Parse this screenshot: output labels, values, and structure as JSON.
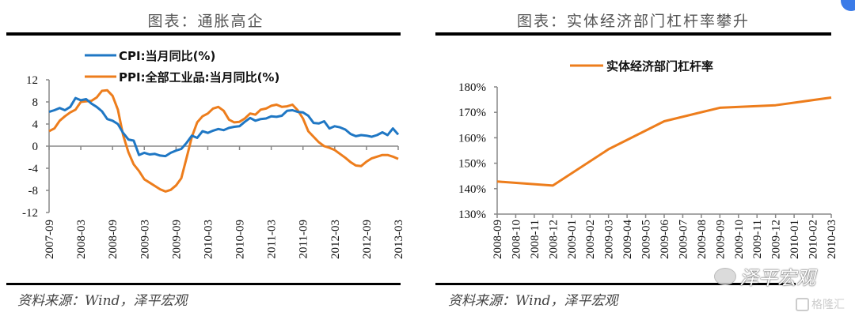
{
  "left_panel": {
    "title": "图表：通胀高企",
    "source": "资料来源：Wind，泽平宏观"
  },
  "right_panel": {
    "title": "图表：实体经济部门杠杆率攀升",
    "source": "资料来源：Wind，泽平宏观"
  },
  "watermark": {
    "text": "泽平宏观",
    "brand": "格隆汇"
  },
  "colors": {
    "cpi": "#1f77c4",
    "ppi": "#ed7d1c",
    "leverage": "#ed7d1c",
    "axis": "#888888"
  },
  "chart_data": [
    {
      "type": "line",
      "title": "图表：通胀高企",
      "xlabel": "",
      "ylabel": "",
      "ylim": [
        -12,
        12
      ],
      "yticks": [
        12,
        8,
        4,
        0,
        -4,
        -8,
        -12
      ],
      "xticks": [
        "2007-09",
        "2008-03",
        "2008-09",
        "2009-03",
        "2009-09",
        "2010-03",
        "2010-09",
        "2011-03",
        "2011-09",
        "2012-03",
        "2012-09",
        "2013-03"
      ],
      "legend_placement": "top-left",
      "series": [
        {
          "name": "CPI:当月同比(%)",
          "start": "2007-09",
          "frequency": "monthly",
          "values": [
            6.2,
            6.5,
            6.9,
            6.5,
            7.1,
            8.7,
            8.3,
            8.5,
            7.7,
            7.1,
            6.3,
            4.9,
            4.6,
            4.0,
            2.4,
            1.2,
            1.0,
            -1.6,
            -1.2,
            -1.5,
            -1.4,
            -1.7,
            -1.8,
            -1.2,
            -0.8,
            -0.5,
            0.6,
            1.9,
            1.5,
            2.7,
            2.4,
            2.8,
            3.1,
            2.9,
            3.3,
            3.5,
            3.6,
            4.4,
            5.1,
            4.6,
            4.9,
            5.0,
            5.4,
            5.3,
            5.5,
            6.4,
            6.5,
            6.2,
            6.1,
            5.5,
            4.2,
            4.1,
            4.5,
            3.2,
            3.6,
            3.4,
            3.0,
            2.2,
            1.8,
            2.0,
            1.9,
            1.7,
            2.0,
            2.5,
            2.0,
            3.2,
            2.1
          ]
        },
        {
          "name": "PPI:全部工业品:当月同比(%)",
          "start": "2007-09",
          "frequency": "monthly",
          "values": [
            2.7,
            3.2,
            4.6,
            5.4,
            6.1,
            6.6,
            8.0,
            8.1,
            8.2,
            8.8,
            10.0,
            10.1,
            9.1,
            6.6,
            2.0,
            -1.1,
            -3.3,
            -4.5,
            -6.0,
            -6.6,
            -7.2,
            -7.8,
            -8.2,
            -7.9,
            -7.1,
            -5.8,
            -2.1,
            1.7,
            4.3,
            5.4,
            5.9,
            6.8,
            7.1,
            6.4,
            4.8,
            4.3,
            4.4,
            5.0,
            5.9,
            5.7,
            6.6,
            6.8,
            7.3,
            7.5,
            7.1,
            7.2,
            7.5,
            6.5,
            5.0,
            2.7,
            1.7,
            0.7,
            0.0,
            -0.3,
            -0.7,
            -1.4,
            -2.1,
            -2.9,
            -3.5,
            -3.6,
            -2.8,
            -2.2,
            -1.9,
            -1.6,
            -1.6,
            -1.9,
            -2.3
          ]
        }
      ]
    },
    {
      "type": "line",
      "title": "图表：实体经济部门杠杆率攀升",
      "xlabel": "",
      "ylabel": "",
      "ylim": [
        130,
        180
      ],
      "yticks": [
        "180%",
        "170%",
        "160%",
        "150%",
        "140%",
        "130%"
      ],
      "categories": [
        "2008-09",
        "2008-10",
        "2008-11",
        "2008-12",
        "2009-01",
        "2009-02",
        "2009-03",
        "2009-04",
        "2009-05",
        "2009-06",
        "2009-07",
        "2009-08",
        "2009-09",
        "2009-10",
        "2009-11",
        "2009-12",
        "2010-01",
        "2010-02",
        "2010-03"
      ],
      "legend_placement": "top-center",
      "series": [
        {
          "name": "实体经济部门杠杆率",
          "unit": "%",
          "points": [
            {
              "x": "2008-09",
              "y": 142.8
            },
            {
              "x": "2008-12",
              "y": 141.2
            },
            {
              "x": "2009-03",
              "y": 155.5
            },
            {
              "x": "2009-06",
              "y": 166.5
            },
            {
              "x": "2009-09",
              "y": 171.8
            },
            {
              "x": "2009-12",
              "y": 172.8
            },
            {
              "x": "2010-03",
              "y": 175.8
            }
          ]
        }
      ]
    }
  ]
}
